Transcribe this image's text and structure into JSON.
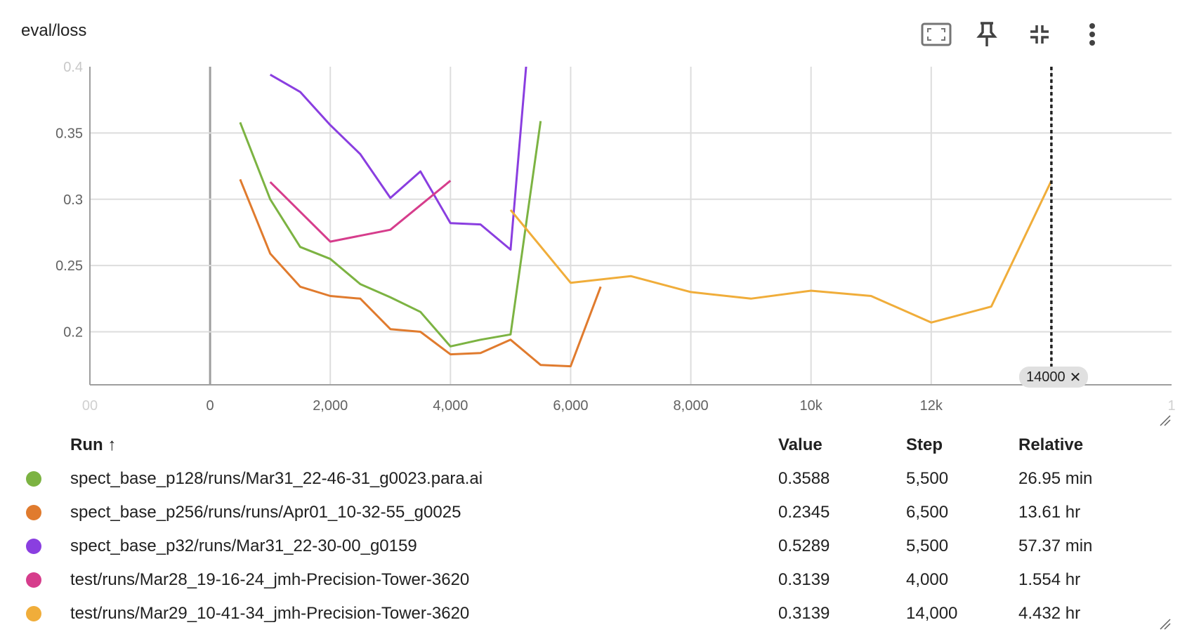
{
  "card": {
    "title": "eval/loss"
  },
  "toolbar": {
    "icons": [
      "fit-domain-icon",
      "pin-icon",
      "collapse-icon",
      "more-vert-icon"
    ]
  },
  "chart_data": {
    "type": "line",
    "title": "eval/loss",
    "xlabel": "",
    "ylabel": "",
    "xlim": [
      -2000,
      16000
    ],
    "ylim": [
      0.16,
      0.4
    ],
    "x_ticks": [
      "00",
      "0",
      "2,000",
      "4,000",
      "6,000",
      "8,000",
      "10k",
      "12k",
      "14000",
      "1"
    ],
    "y_ticks": [
      "0.4",
      "0.35",
      "0.3",
      "0.25",
      "0.2"
    ],
    "grid": true,
    "cursor_x": 14000,
    "cursor_label": "14000",
    "series": [
      {
        "name": "spect_base_p128/runs/Mar31_22-46-31_g0023.para.ai",
        "color": "#7cb342",
        "x": [
          500,
          1000,
          1500,
          2000,
          2500,
          3000,
          3500,
          4000,
          4500,
          5000,
          5500
        ],
        "y": [
          0.358,
          0.3,
          0.264,
          0.255,
          0.236,
          0.226,
          0.215,
          0.189,
          0.194,
          0.198,
          0.359
        ]
      },
      {
        "name": "spect_base_p256/runs/runs/Apr01_10-32-55_g0025",
        "color": "#e07b2e",
        "x": [
          500,
          1000,
          1500,
          2000,
          2500,
          3000,
          3500,
          4000,
          4500,
          5000,
          5500,
          6000,
          6500
        ],
        "y": [
          0.315,
          0.259,
          0.234,
          0.227,
          0.225,
          0.202,
          0.2,
          0.183,
          0.184,
          0.194,
          0.175,
          0.174,
          0.234
        ]
      },
      {
        "name": "spect_base_p32/runs/Mar31_22-30-00_g0159",
        "color": "#8a3ee0",
        "x": [
          1000,
          1500,
          2000,
          2500,
          3000,
          3500,
          4000,
          4500,
          5000,
          5500
        ],
        "y": [
          0.394,
          0.381,
          0.356,
          0.334,
          0.301,
          0.321,
          0.282,
          0.281,
          0.262,
          0.529
        ]
      },
      {
        "name": "test/runs/Mar28_19-16-24_jmh-Precision-Tower-3620",
        "color": "#d63d8c",
        "x": [
          1000,
          2000,
          3000,
          4000
        ],
        "y": [
          0.313,
          0.268,
          0.277,
          0.314
        ]
      },
      {
        "name": "test/runs/Mar29_10-41-34_jmh-Precision-Tower-3620",
        "color": "#f0ad3a",
        "x": [
          5000,
          6000,
          7000,
          8000,
          9000,
          10000,
          11000,
          12000,
          13000,
          14000
        ],
        "y": [
          0.292,
          0.237,
          0.242,
          0.23,
          0.225,
          0.231,
          0.227,
          0.207,
          0.219,
          0.314
        ]
      }
    ]
  },
  "table": {
    "headers": {
      "run": "Run ↑",
      "value": "Value",
      "step": "Step",
      "relative": "Relative"
    },
    "rows": [
      {
        "run": "spect_base_p128/runs/Mar31_22-46-31_g0023.para.ai",
        "value": "0.3588",
        "step": "5,500",
        "relative": "26.95 min",
        "color": "#7cb342"
      },
      {
        "run": "spect_base_p256/runs/runs/Apr01_10-32-55_g0025",
        "value": "0.2345",
        "step": "6,500",
        "relative": "13.61 hr",
        "color": "#e07b2e"
      },
      {
        "run": "spect_base_p32/runs/Mar31_22-30-00_g0159",
        "value": "0.5289",
        "step": "5,500",
        "relative": "57.37 min",
        "color": "#8a3ee0"
      },
      {
        "run": "test/runs/Mar28_19-16-24_jmh-Precision-Tower-3620",
        "value": "0.3139",
        "step": "4,000",
        "relative": "1.554 hr",
        "color": "#d63d8c"
      },
      {
        "run": "test/runs/Mar29_10-41-34_jmh-Precision-Tower-3620",
        "value": "0.3139",
        "step": "14,000",
        "relative": "4.432 hr",
        "color": "#f0ad3a"
      }
    ]
  }
}
